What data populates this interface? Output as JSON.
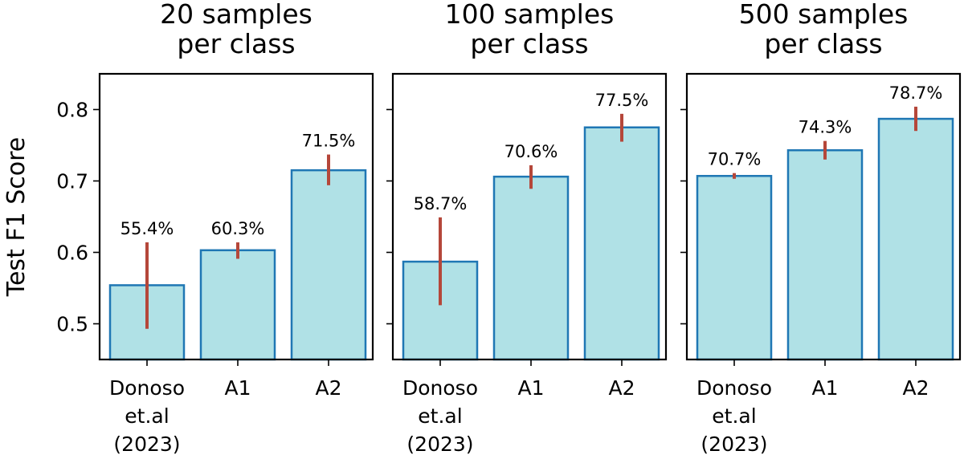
{
  "chart_data": {
    "type": "bar",
    "ylabel": "Test F1 Score",
    "ylim": [
      0.45,
      0.85
    ],
    "yticks": [
      0.5,
      0.6,
      0.7,
      0.8
    ],
    "ytick_labels": [
      "0.5",
      "0.6",
      "0.7",
      "0.8"
    ],
    "colors": {
      "bar_fill": "#b0e1e6",
      "bar_edge": "#1f77b4",
      "error": "#b5473a"
    },
    "panels": [
      {
        "title_lines": [
          "20 samples",
          "per class"
        ],
        "categories": [
          {
            "lines": [
              "Donoso",
              "et.al",
              "(2023)"
            ]
          },
          {
            "lines": [
              "A1"
            ]
          },
          {
            "lines": [
              "A2"
            ]
          }
        ],
        "values": [
          0.554,
          0.603,
          0.715
        ],
        "errors": [
          [
            0.493,
            0.614
          ],
          [
            0.591,
            0.614
          ],
          [
            0.694,
            0.737
          ]
        ],
        "labels": [
          "55.4%",
          "60.3%",
          "71.5%"
        ]
      },
      {
        "title_lines": [
          "100 samples",
          "per class"
        ],
        "categories": [
          {
            "lines": [
              "Donoso",
              "et.al",
              "(2023)"
            ]
          },
          {
            "lines": [
              "A1"
            ]
          },
          {
            "lines": [
              "A2"
            ]
          }
        ],
        "values": [
          0.587,
          0.706,
          0.775
        ],
        "errors": [
          [
            0.526,
            0.649
          ],
          [
            0.689,
            0.722
          ],
          [
            0.755,
            0.794
          ]
        ],
        "labels": [
          "58.7%",
          "70.6%",
          "77.5%"
        ]
      },
      {
        "title_lines": [
          "500 samples",
          "per class"
        ],
        "categories": [
          {
            "lines": [
              "Donoso",
              "et.al",
              "(2023)"
            ]
          },
          {
            "lines": [
              "A1"
            ]
          },
          {
            "lines": [
              "A2"
            ]
          }
        ],
        "values": [
          0.707,
          0.743,
          0.787
        ],
        "errors": [
          [
            0.703,
            0.711
          ],
          [
            0.73,
            0.756
          ],
          [
            0.77,
            0.804
          ]
        ],
        "labels": [
          "70.7%",
          "74.3%",
          "78.7%"
        ]
      }
    ]
  }
}
